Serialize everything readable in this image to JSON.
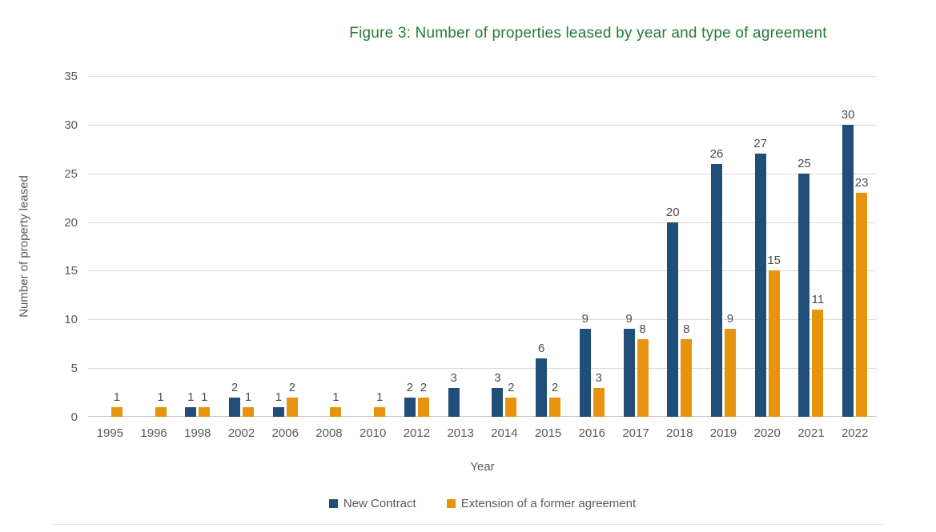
{
  "chart_data": {
    "type": "bar",
    "title": "Figure 3: Number of properties leased by year and type of agreement",
    "title_color": "#267B38",
    "xlabel": "Year",
    "ylabel": "Number of property leased",
    "ylim": [
      0,
      35
    ],
    "yticks": [
      0,
      5,
      10,
      15,
      20,
      25,
      30,
      35
    ],
    "grid": true,
    "legend_position": "bottom",
    "data_labels": true,
    "categories": [
      "1995",
      "1996",
      "1998",
      "2002",
      "2006",
      "2008",
      "2010",
      "2012",
      "2013",
      "2014",
      "2015",
      "2016",
      "2017",
      "2018",
      "2019",
      "2020",
      "2021",
      "2022"
    ],
    "series": [
      {
        "name": "New Contract",
        "color": "#1F4E79",
        "values": [
          0,
          0,
          1,
          2,
          1,
          0,
          0,
          2,
          3,
          3,
          6,
          9,
          9,
          20,
          26,
          27,
          25,
          30
        ]
      },
      {
        "name": "Extension of a former agreement",
        "color": "#E8930D",
        "values": [
          1,
          1,
          1,
          1,
          2,
          1,
          1,
          2,
          0,
          2,
          2,
          3,
          8,
          8,
          9,
          15,
          11,
          23
        ]
      }
    ]
  },
  "colors": {
    "gridline": "#D9D9D9",
    "axis_line": "#C8C8C8",
    "tick_text": "#595959",
    "data_label_text": "#4D4D4D"
  }
}
